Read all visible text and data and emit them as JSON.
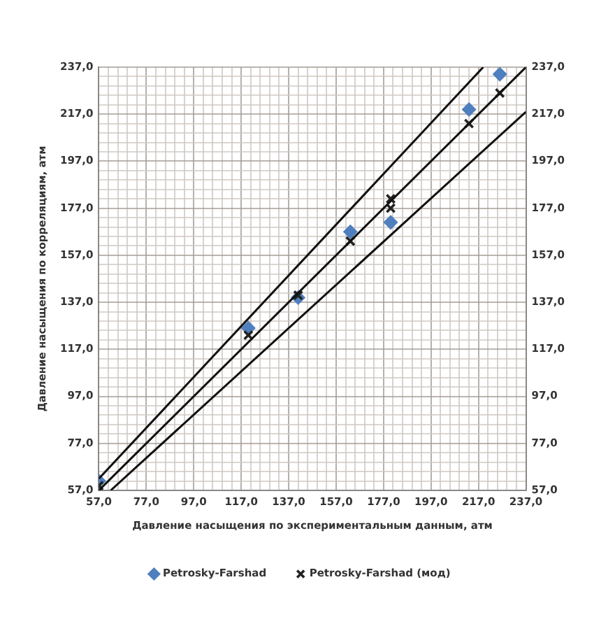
{
  "chart_data": {
    "type": "scatter",
    "xlabel": "Давление насыщения по экспериментальным данным, атм",
    "ylabel": "Давление насыщения по корреляциям, атм",
    "xlim": [
      57,
      237
    ],
    "ylim": [
      57,
      237
    ],
    "y2lim": [
      57,
      237
    ],
    "xticks": [
      {
        "value": 57,
        "label": "57,0"
      },
      {
        "value": 61,
        "label": null
      },
      {
        "value": 65,
        "label": null
      },
      {
        "value": 69,
        "label": null
      },
      {
        "value": 73,
        "label": null
      },
      {
        "value": 77,
        "label": "77,0"
      },
      {
        "value": 81,
        "label": null
      },
      {
        "value": 85,
        "label": null
      },
      {
        "value": 89,
        "label": null
      },
      {
        "value": 93,
        "label": null
      },
      {
        "value": 97,
        "label": "97,0"
      },
      {
        "value": 101,
        "label": null
      },
      {
        "value": 105,
        "label": null
      },
      {
        "value": 109,
        "label": null
      },
      {
        "value": 113,
        "label": null
      },
      {
        "value": 117,
        "label": "117,0"
      },
      {
        "value": 121,
        "label": null
      },
      {
        "value": 125,
        "label": null
      },
      {
        "value": 129,
        "label": null
      },
      {
        "value": 133,
        "label": null
      },
      {
        "value": 137,
        "label": "137,0"
      },
      {
        "value": 141,
        "label": null
      },
      {
        "value": 145,
        "label": null
      },
      {
        "value": 149,
        "label": null
      },
      {
        "value": 153,
        "label": null
      },
      {
        "value": 157,
        "label": "157,0"
      },
      {
        "value": 161,
        "label": null
      },
      {
        "value": 165,
        "label": null
      },
      {
        "value": 169,
        "label": null
      },
      {
        "value": 173,
        "label": null
      },
      {
        "value": 177,
        "label": "177,0"
      },
      {
        "value": 181,
        "label": null
      },
      {
        "value": 185,
        "label": null
      },
      {
        "value": 189,
        "label": null
      },
      {
        "value": 193,
        "label": null
      },
      {
        "value": 197,
        "label": "197,0"
      },
      {
        "value": 201,
        "label": null
      },
      {
        "value": 205,
        "label": null
      },
      {
        "value": 209,
        "label": null
      },
      {
        "value": 213,
        "label": null
      },
      {
        "value": 217,
        "label": "217,0"
      },
      {
        "value": 221,
        "label": null
      },
      {
        "value": 225,
        "label": null
      },
      {
        "value": 229,
        "label": null
      },
      {
        "value": 233,
        "label": null
      },
      {
        "value": 237,
        "label": "237,0"
      }
    ],
    "yticks": [
      {
        "value": 57,
        "label": "57,0"
      },
      {
        "value": 61,
        "label": null
      },
      {
        "value": 65,
        "label": null
      },
      {
        "value": 69,
        "label": null
      },
      {
        "value": 73,
        "label": null
      },
      {
        "value": 77,
        "label": "77,0"
      },
      {
        "value": 81,
        "label": null
      },
      {
        "value": 85,
        "label": null
      },
      {
        "value": 89,
        "label": null
      },
      {
        "value": 93,
        "label": null
      },
      {
        "value": 97,
        "label": "97,0"
      },
      {
        "value": 101,
        "label": null
      },
      {
        "value": 105,
        "label": null
      },
      {
        "value": 109,
        "label": null
      },
      {
        "value": 113,
        "label": null
      },
      {
        "value": 117,
        "label": "117,0"
      },
      {
        "value": 121,
        "label": null
      },
      {
        "value": 125,
        "label": null
      },
      {
        "value": 129,
        "label": null
      },
      {
        "value": 133,
        "label": null
      },
      {
        "value": 137,
        "label": "137,0"
      },
      {
        "value": 141,
        "label": null
      },
      {
        "value": 145,
        "label": null
      },
      {
        "value": 149,
        "label": null
      },
      {
        "value": 153,
        "label": null
      },
      {
        "value": 157,
        "label": "157,0"
      },
      {
        "value": 161,
        "label": null
      },
      {
        "value": 165,
        "label": null
      },
      {
        "value": 169,
        "label": null
      },
      {
        "value": 173,
        "label": null
      },
      {
        "value": 177,
        "label": "177,0"
      },
      {
        "value": 181,
        "label": null
      },
      {
        "value": 185,
        "label": null
      },
      {
        "value": 189,
        "label": null
      },
      {
        "value": 193,
        "label": null
      },
      {
        "value": 197,
        "label": "197,0"
      },
      {
        "value": 201,
        "label": null
      },
      {
        "value": 205,
        "label": null
      },
      {
        "value": 209,
        "label": null
      },
      {
        "value": 213,
        "label": null
      },
      {
        "value": 217,
        "label": "217,0"
      },
      {
        "value": 221,
        "label": null
      },
      {
        "value": 225,
        "label": null
      },
      {
        "value": 229,
        "label": null
      },
      {
        "value": 233,
        "label": null
      },
      {
        "value": 237,
        "label": "237,0"
      }
    ],
    "y2ticks": [
      {
        "value": 57,
        "label": "57,0"
      },
      {
        "value": 77,
        "label": "77,0"
      },
      {
        "value": 97,
        "label": "97,0"
      },
      {
        "value": 117,
        "label": "117,0"
      },
      {
        "value": 137,
        "label": "137,0"
      },
      {
        "value": 157,
        "label": "157,0"
      },
      {
        "value": 177,
        "label": "177,0"
      },
      {
        "value": 197,
        "label": "197,0"
      },
      {
        "value": 217,
        "label": "217,0"
      },
      {
        "value": 237,
        "label": "237,0"
      }
    ],
    "grid": true,
    "legend": "bottom",
    "series": [
      {
        "name": "Petrosky-Farshad",
        "color": "#4f7fbf",
        "marker": "diamond",
        "x": [
          57,
          120,
          141,
          163,
          180,
          213,
          226
        ],
        "values": [
          61,
          126,
          139,
          167,
          171,
          219,
          234
        ]
      },
      {
        "name": "Petrosky-Farshad (мод)",
        "color": "#222222",
        "marker": "cross",
        "x": [
          57,
          120,
          141,
          163,
          180,
          180,
          213,
          226
        ],
        "values": [
          59,
          123,
          140,
          163,
          181,
          177,
          213,
          226
        ]
      },
      {
        "type": "line",
        "color": "#111111",
        "marker": "none",
        "x": [
          57,
          237
        ],
        "values": [
          57,
          237
        ]
      },
      {
        "type": "line",
        "color": "#111111",
        "marker": "none",
        "x": [
          57,
          219
        ],
        "values": [
          62,
          237
        ]
      },
      {
        "type": "line",
        "color": "#111111",
        "marker": "none",
        "x": [
          62,
          237
        ],
        "values": [
          57,
          218
        ]
      }
    ]
  }
}
